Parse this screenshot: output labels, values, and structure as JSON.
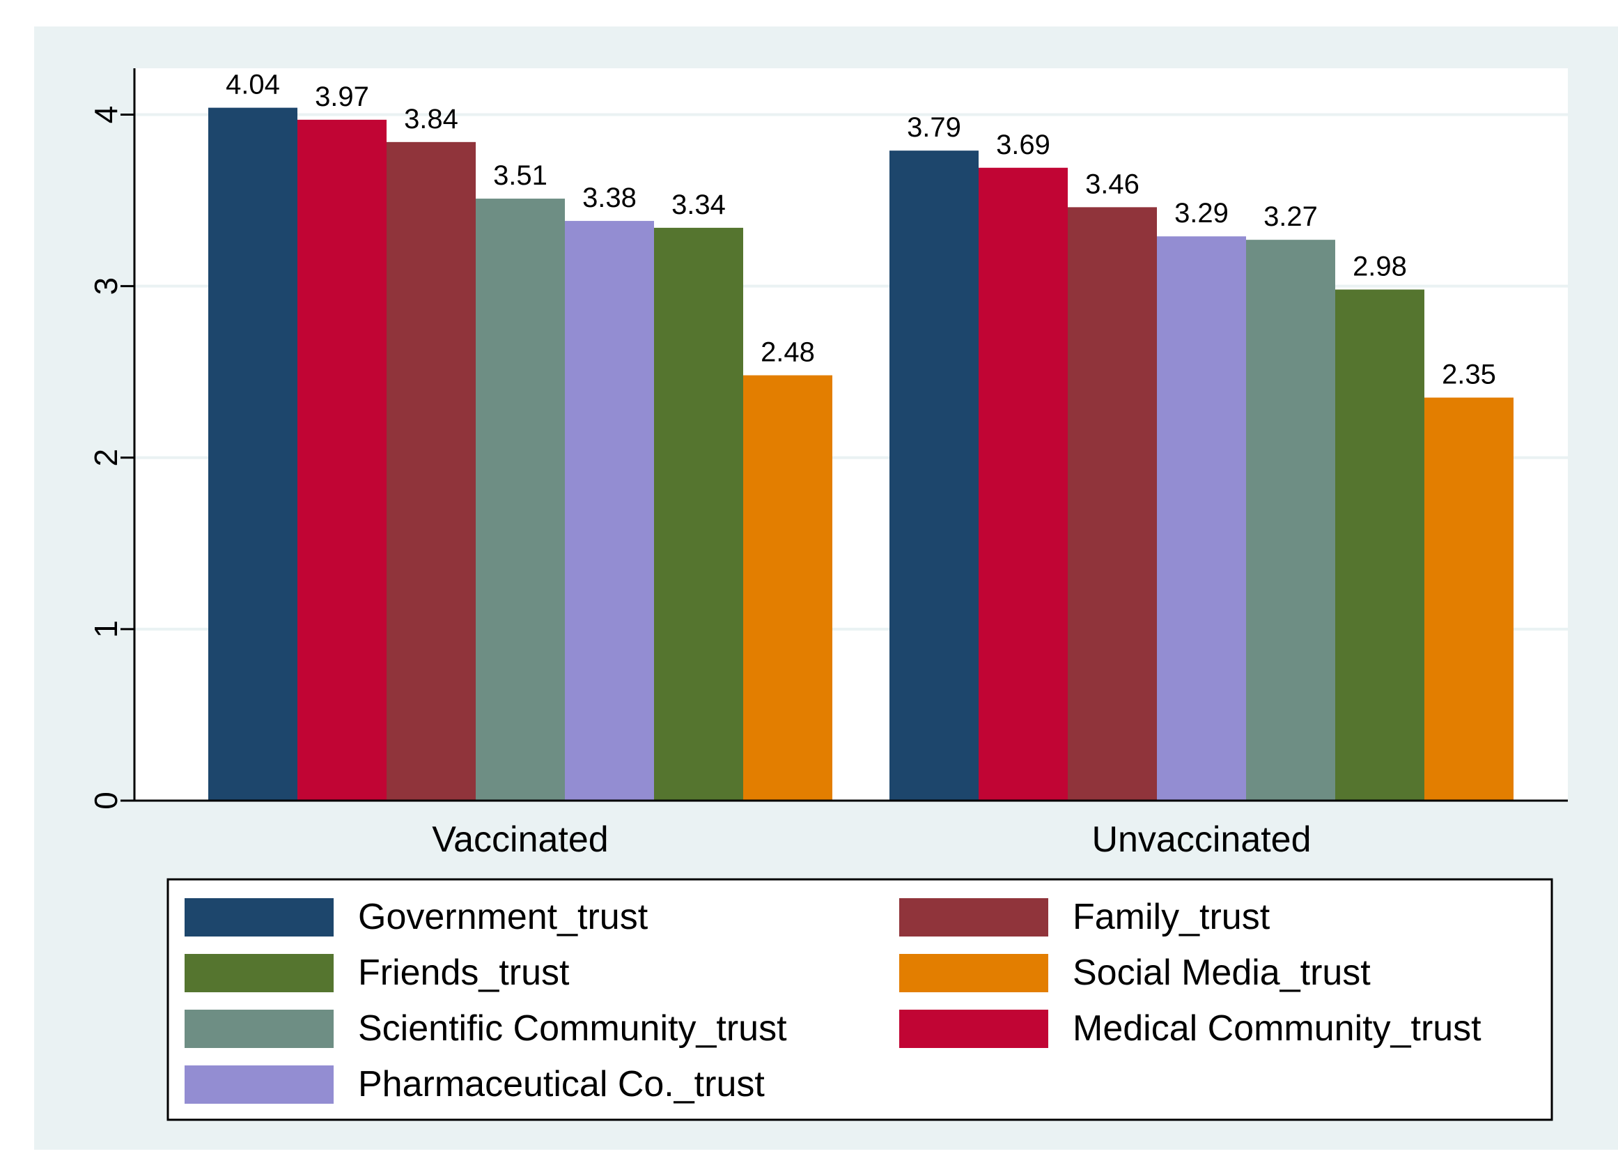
{
  "colors": {
    "outer_background": "#eaf2f3",
    "plot_background": "#ffffff",
    "gridline": "#eaf2f3",
    "axis": "#000000"
  },
  "chart_data": {
    "type": "bar",
    "title": "",
    "xlabel": "",
    "ylabel": "",
    "ylim": [
      0,
      4.27
    ],
    "yticks": [
      0,
      1,
      2,
      3,
      4
    ],
    "grid": true,
    "legend_position": "bottom",
    "groups": [
      {
        "label": "Vaccinated",
        "bars": [
          {
            "series": "Government_trust",
            "value": 4.04
          },
          {
            "series": "Medical Community_trust",
            "value": 3.97
          },
          {
            "series": "Family_trust",
            "value": 3.84
          },
          {
            "series": "Scientific Community_trust",
            "value": 3.51
          },
          {
            "series": "Pharmaceutical Co._trust",
            "value": 3.38
          },
          {
            "series": "Friends_trust",
            "value": 3.34
          },
          {
            "series": "Social Media_trust",
            "value": 2.48
          }
        ]
      },
      {
        "label": "Unvaccinated",
        "bars": [
          {
            "series": "Government_trust",
            "value": 3.79
          },
          {
            "series": "Medical Community_trust",
            "value": 3.69
          },
          {
            "series": "Family_trust",
            "value": 3.46
          },
          {
            "series": "Pharmaceutical Co._trust",
            "value": 3.29
          },
          {
            "series": "Scientific Community_trust",
            "value": 3.27
          },
          {
            "series": "Friends_trust",
            "value": 2.98
          },
          {
            "series": "Social Media_trust",
            "value": 2.35
          }
        ]
      }
    ],
    "series": [
      {
        "name": "Government_trust",
        "color": "#1d466c"
      },
      {
        "name": "Family_trust",
        "color": "#90343b"
      },
      {
        "name": "Friends_trust",
        "color": "#55752f"
      },
      {
        "name": "Social Media_trust",
        "color": "#e37e00"
      },
      {
        "name": "Scientific Community_trust",
        "color": "#6e8e84"
      },
      {
        "name": "Medical Community_trust",
        "color": "#c10534"
      },
      {
        "name": "Pharmaceutical Co._trust",
        "color": "#938dd2"
      }
    ]
  }
}
